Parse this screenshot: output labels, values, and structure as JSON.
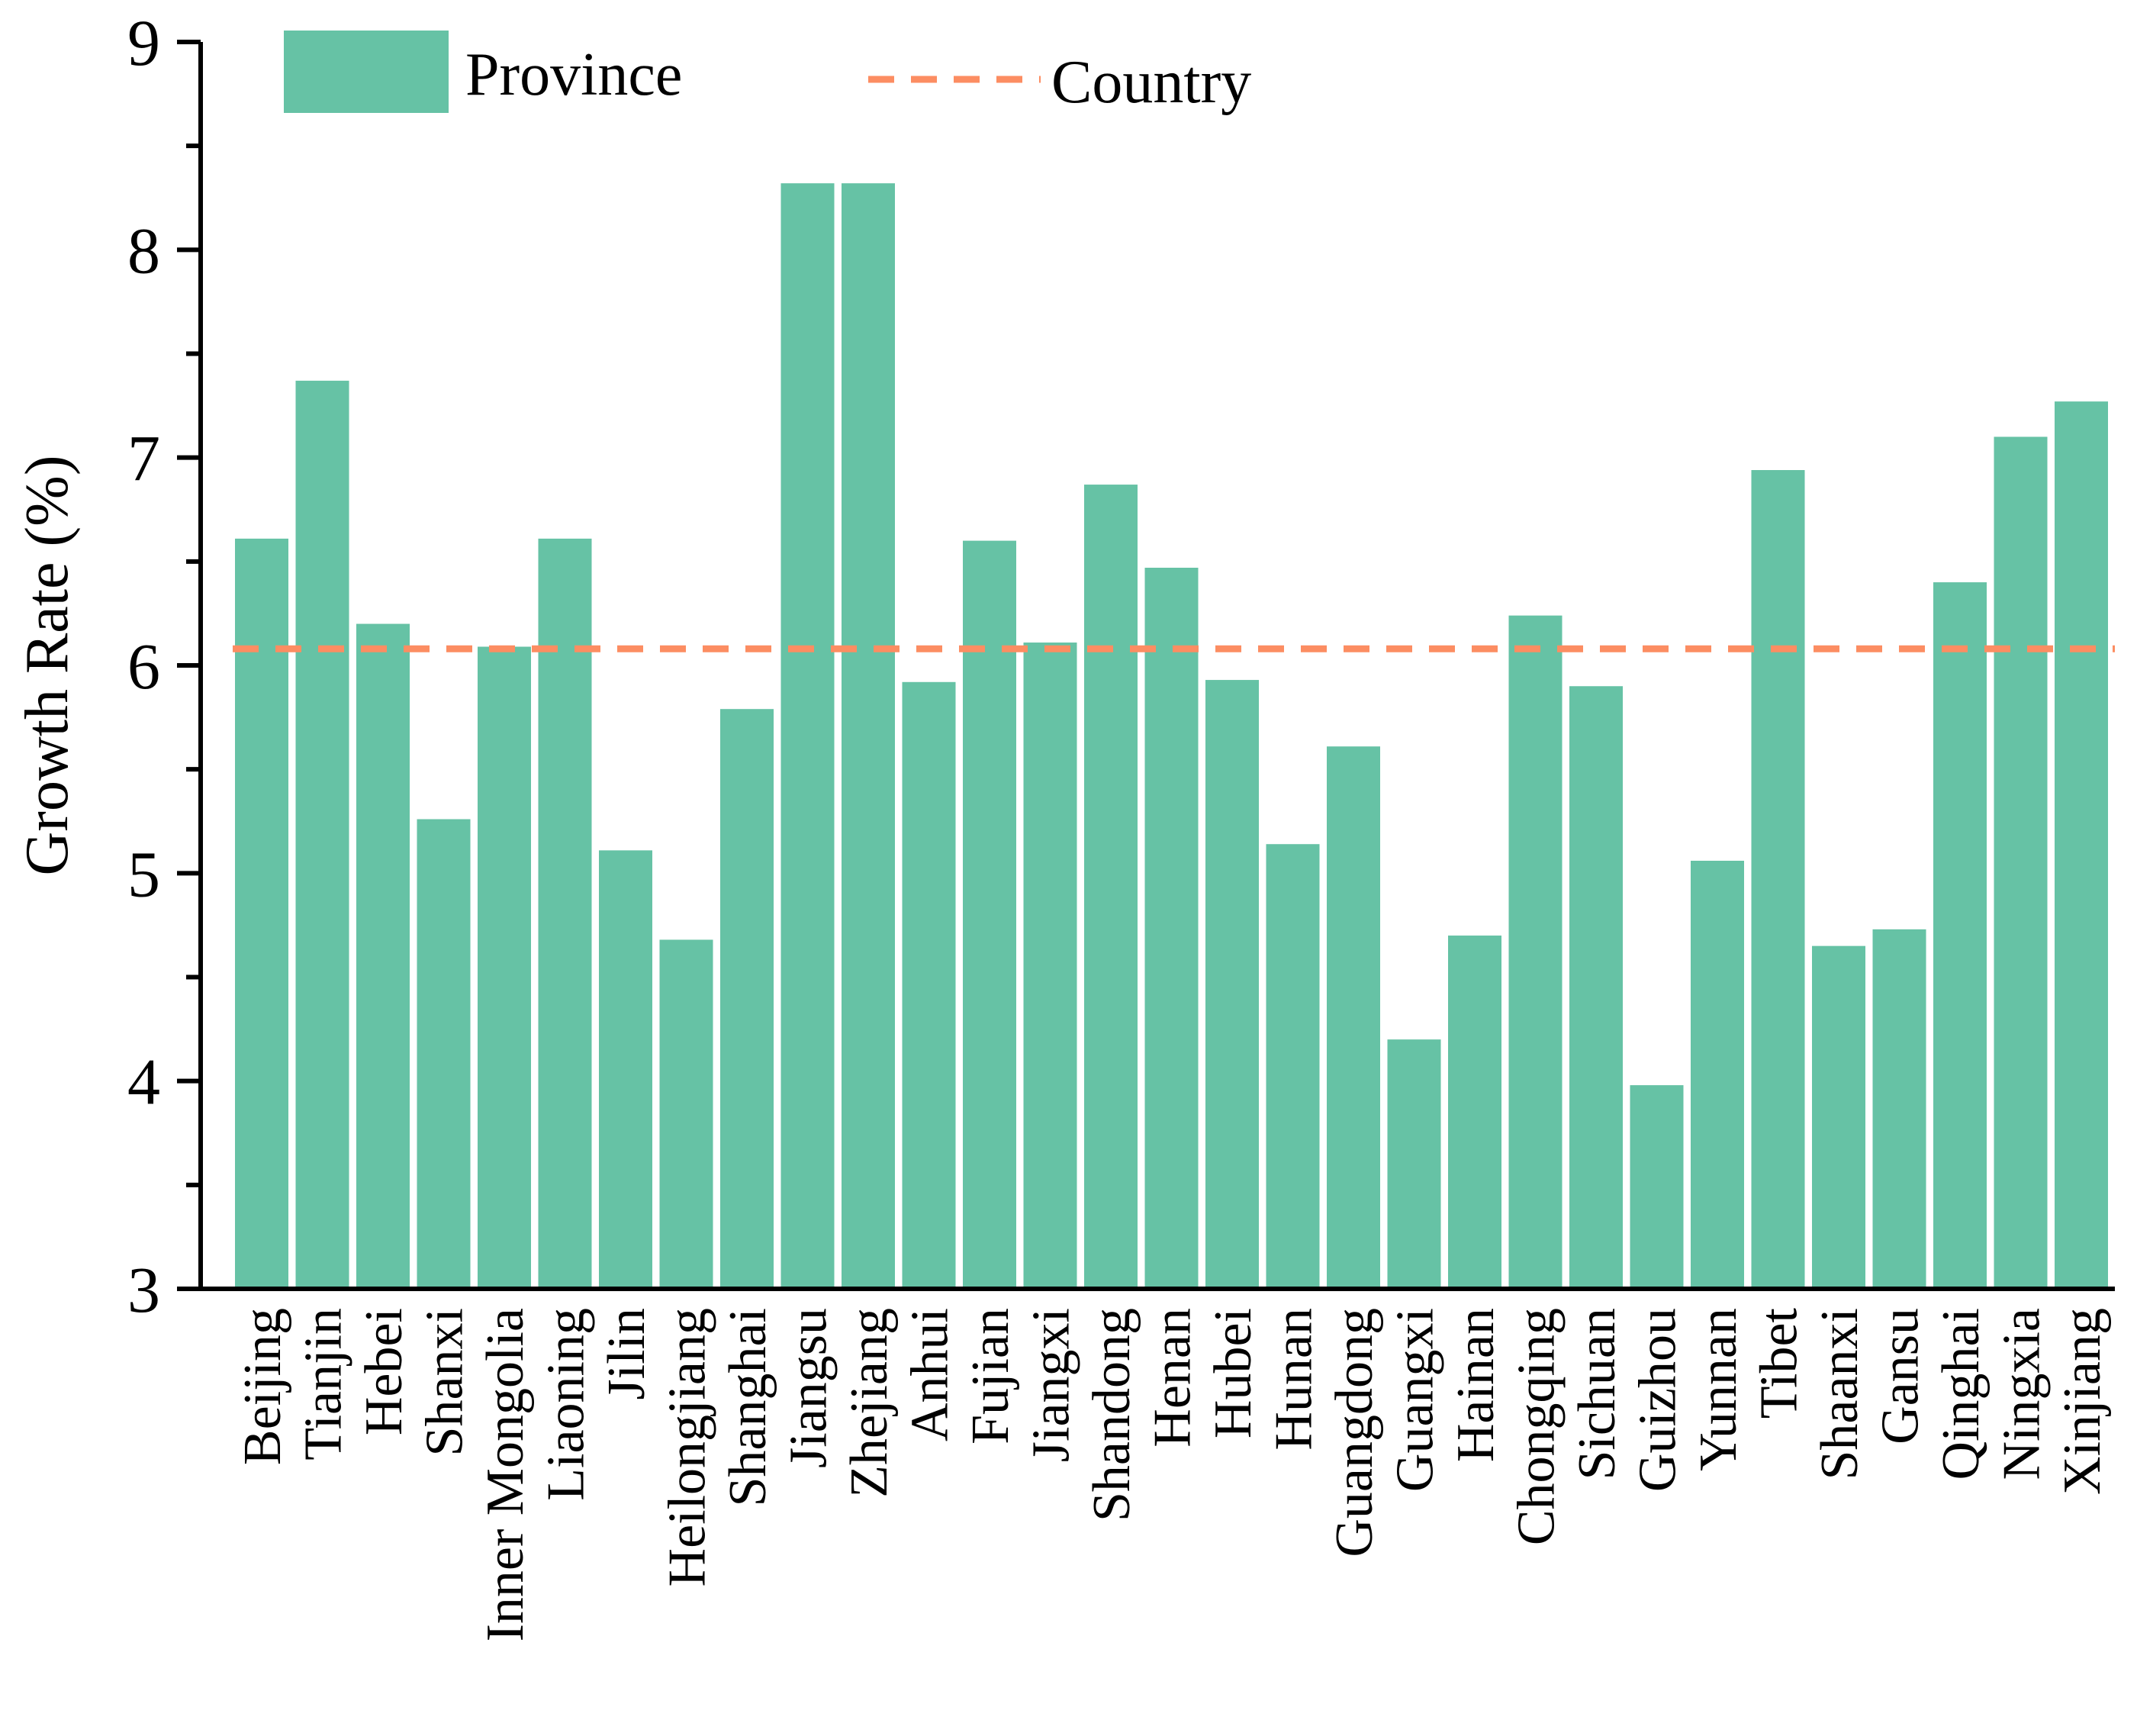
{
  "chart_data": {
    "type": "bar",
    "ylabel": "Growth Rate (%)",
    "ylim": [
      3,
      9
    ],
    "yticks": [
      3,
      4,
      5,
      6,
      7,
      8,
      9
    ],
    "grid": false,
    "legend_position": "top",
    "categories": [
      "Beijing",
      "Tianjin",
      "Hebei",
      "Shanxi",
      "Inner Mongolia",
      "Liaoning",
      "Jilin",
      "Heilongjiang",
      "Shanghai",
      "Jiangsu",
      "Zhejiang",
      "Anhui",
      "Fujian",
      "Jiangxi",
      "Shandong",
      "Henan",
      "Hubei",
      "Hunan",
      "Guangdong",
      "Guangxi",
      "Hainan",
      "Chongqing",
      "Sichuan",
      "Guizhou",
      "Yunnan",
      "Tibet",
      "Shaanxi",
      "Gansu",
      "Qinghai",
      "Ningxia",
      "Xinjiang"
    ],
    "series": [
      {
        "name": "Province",
        "type": "bar",
        "color": "#66c2a5",
        "values": [
          6.61,
          7.37,
          6.2,
          5.26,
          6.09,
          6.61,
          5.11,
          4.68,
          5.79,
          8.32,
          8.32,
          5.92,
          6.6,
          6.11,
          6.87,
          6.47,
          5.93,
          5.14,
          5.61,
          4.2,
          4.7,
          6.24,
          5.9,
          3.98,
          5.06,
          6.94,
          4.65,
          4.73,
          6.4,
          7.1,
          7.27
        ]
      },
      {
        "name": "Country",
        "type": "reference-line",
        "style": "dashed",
        "color": "#fc8d62",
        "value": 6.08
      }
    ]
  }
}
